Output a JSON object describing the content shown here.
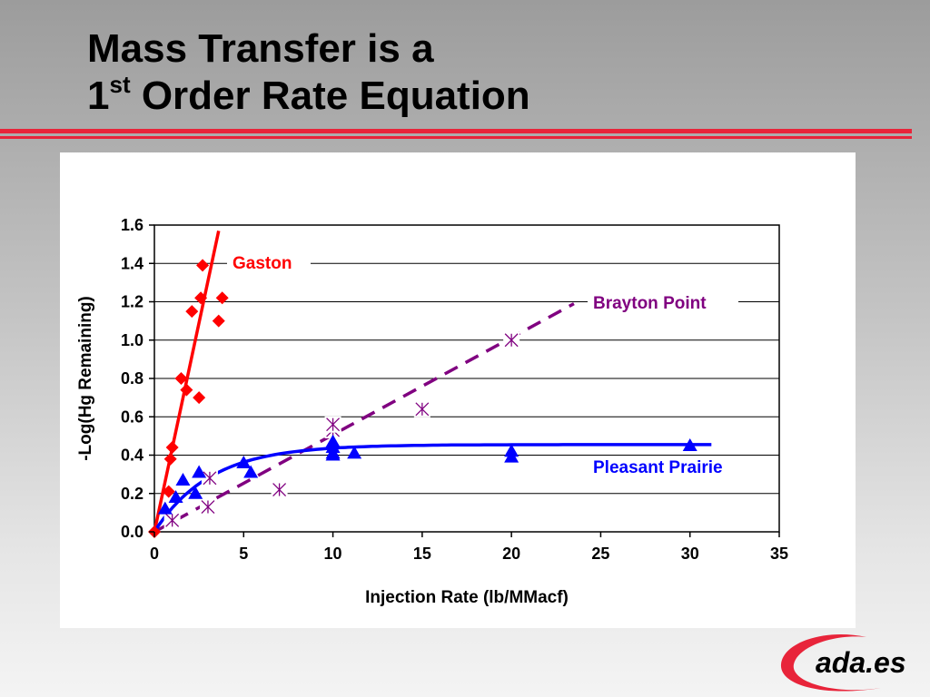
{
  "slide": {
    "title_line1": "Mass Transfer is a",
    "title_line2_prefix": "1",
    "title_line2_sup": "st",
    "title_line2_rest": " Order Rate Equation"
  },
  "logo": {
    "text": "ada.es",
    "colors": {
      "swoosh": "#e8243a",
      "text": "#000000"
    }
  },
  "chart_data": {
    "type": "scatter",
    "title": "",
    "xlabel": "Injection Rate (lb/MMacf)",
    "ylabel": "-Log(Hg Remaining)",
    "xlim": [
      0,
      35
    ],
    "ylim": [
      0,
      1.6
    ],
    "x_ticks": [
      0,
      5,
      10,
      15,
      20,
      25,
      30,
      35
    ],
    "y_ticks": [
      0,
      0.2,
      0.4,
      0.6,
      0.8,
      1.0,
      1.2,
      1.4,
      1.6
    ],
    "x_tick_labels": [
      "0",
      "5",
      "10",
      "15",
      "20",
      "25",
      "30",
      "35"
    ],
    "y_tick_labels": [
      "0.0",
      "0.2",
      "0.4",
      "0.6",
      "0.8",
      "1.0",
      "1.2",
      "1.4",
      "1.6"
    ],
    "grid": "horizontal",
    "series": [
      {
        "name": "Gaston",
        "marker": "diamond",
        "color": "#ff0000",
        "points": [
          [
            0,
            0
          ],
          [
            0.8,
            0.21
          ],
          [
            0.9,
            0.38
          ],
          [
            1.0,
            0.44
          ],
          [
            1.5,
            0.8
          ],
          [
            1.8,
            0.74
          ],
          [
            2.1,
            1.15
          ],
          [
            2.5,
            0.7
          ],
          [
            2.6,
            1.22
          ],
          [
            2.7,
            1.39
          ],
          [
            3.6,
            1.1
          ],
          [
            3.8,
            1.22
          ]
        ],
        "fit": {
          "kind": "linear",
          "x": [
            0,
            3.6
          ],
          "y": [
            0,
            1.57
          ]
        }
      },
      {
        "name": "Brayton Point",
        "marker": "asterisk",
        "color": "#800080",
        "points": [
          [
            1.0,
            0.06
          ],
          [
            3.0,
            0.13
          ],
          [
            3.1,
            0.28
          ],
          [
            7.0,
            0.22
          ],
          [
            10.0,
            0.53
          ],
          [
            10.0,
            0.56
          ],
          [
            15.0,
            0.64
          ],
          [
            20.0,
            1.0
          ]
        ],
        "fit": {
          "kind": "linear-dashed",
          "x": [
            0,
            23.5
          ],
          "y": [
            0,
            1.19
          ]
        }
      },
      {
        "name": "Pleasant Prairie",
        "marker": "triangle",
        "color": "#0000ff",
        "points": [
          [
            0.6,
            0.12
          ],
          [
            1.2,
            0.18
          ],
          [
            1.6,
            0.27
          ],
          [
            2.3,
            0.2
          ],
          [
            2.5,
            0.31
          ],
          [
            5.0,
            0.36
          ],
          [
            5.4,
            0.31
          ],
          [
            10.0,
            0.4
          ],
          [
            10.0,
            0.41
          ],
          [
            10.0,
            0.44
          ],
          [
            10.0,
            0.47
          ],
          [
            11.2,
            0.41
          ],
          [
            20.0,
            0.39
          ],
          [
            20.0,
            0.42
          ],
          [
            30.0,
            0.45
          ]
        ],
        "fit": {
          "kind": "saturation",
          "x_max": 31.2,
          "y_max": 0.455,
          "k": 0.32
        }
      }
    ]
  }
}
